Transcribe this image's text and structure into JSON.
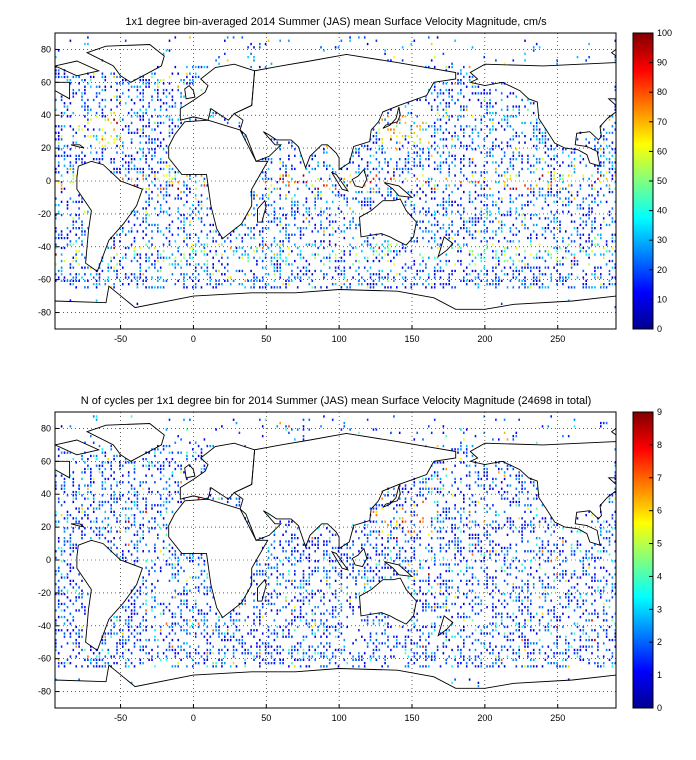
{
  "panels": [
    {
      "title": "1x1 degree bin-averaged 2014 Summer (JAS) mean Surface Velocity Magnitude, cm/s",
      "x_ticks": [
        "-50",
        "0",
        "50",
        "100",
        "150",
        "200",
        "250"
      ],
      "y_ticks": [
        "80",
        "60",
        "40",
        "20",
        "0",
        "-20",
        "-40",
        "-60",
        "-80"
      ],
      "colorbar_ticks": [
        "0",
        "10",
        "20",
        "30",
        "40",
        "50",
        "60",
        "70",
        "80",
        "90",
        "100"
      ],
      "colorbar_range": [
        0,
        100
      ]
    },
    {
      "title": "N of cycles per 1x1 degree bin for 2014 Summer (JAS) mean Surface Velocity Magnitude (24698 in total)",
      "x_ticks": [
        "-50",
        "0",
        "50",
        "100",
        "150",
        "200",
        "250"
      ],
      "y_ticks": [
        "80",
        "60",
        "40",
        "20",
        "0",
        "-20",
        "-40",
        "-60",
        "-80"
      ],
      "colorbar_ticks": [
        "0",
        "1",
        "2",
        "3",
        "4",
        "5",
        "6",
        "7",
        "8",
        "9"
      ],
      "colorbar_range": [
        0,
        9
      ]
    }
  ],
  "map": {
    "lon_range": [
      -95,
      290
    ],
    "lat_range": [
      -90,
      90
    ],
    "grid": "dotted",
    "colormap": "jet"
  }
}
